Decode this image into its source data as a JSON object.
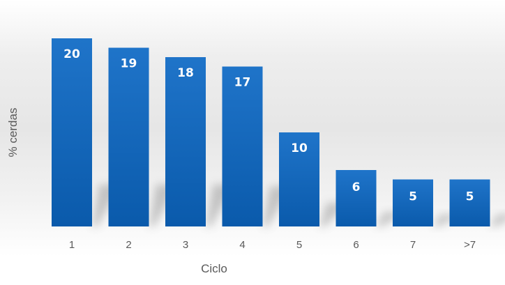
{
  "chart_data": {
    "type": "bar",
    "categories": [
      "1",
      "2",
      "3",
      "4",
      "5",
      "6",
      "7",
      ">7"
    ],
    "values": [
      20,
      19,
      18,
      17,
      10,
      6,
      5,
      5
    ],
    "title": "",
    "xlabel": "Ciclo",
    "ylabel": "% cerdas",
    "ylim": [
      0,
      20
    ],
    "grid": false,
    "data_labels": true,
    "colors": {
      "bar_top": "#1f74c9",
      "bar_bottom": "#0a5aab",
      "label": "#ffffff",
      "tick": "#595959"
    }
  }
}
